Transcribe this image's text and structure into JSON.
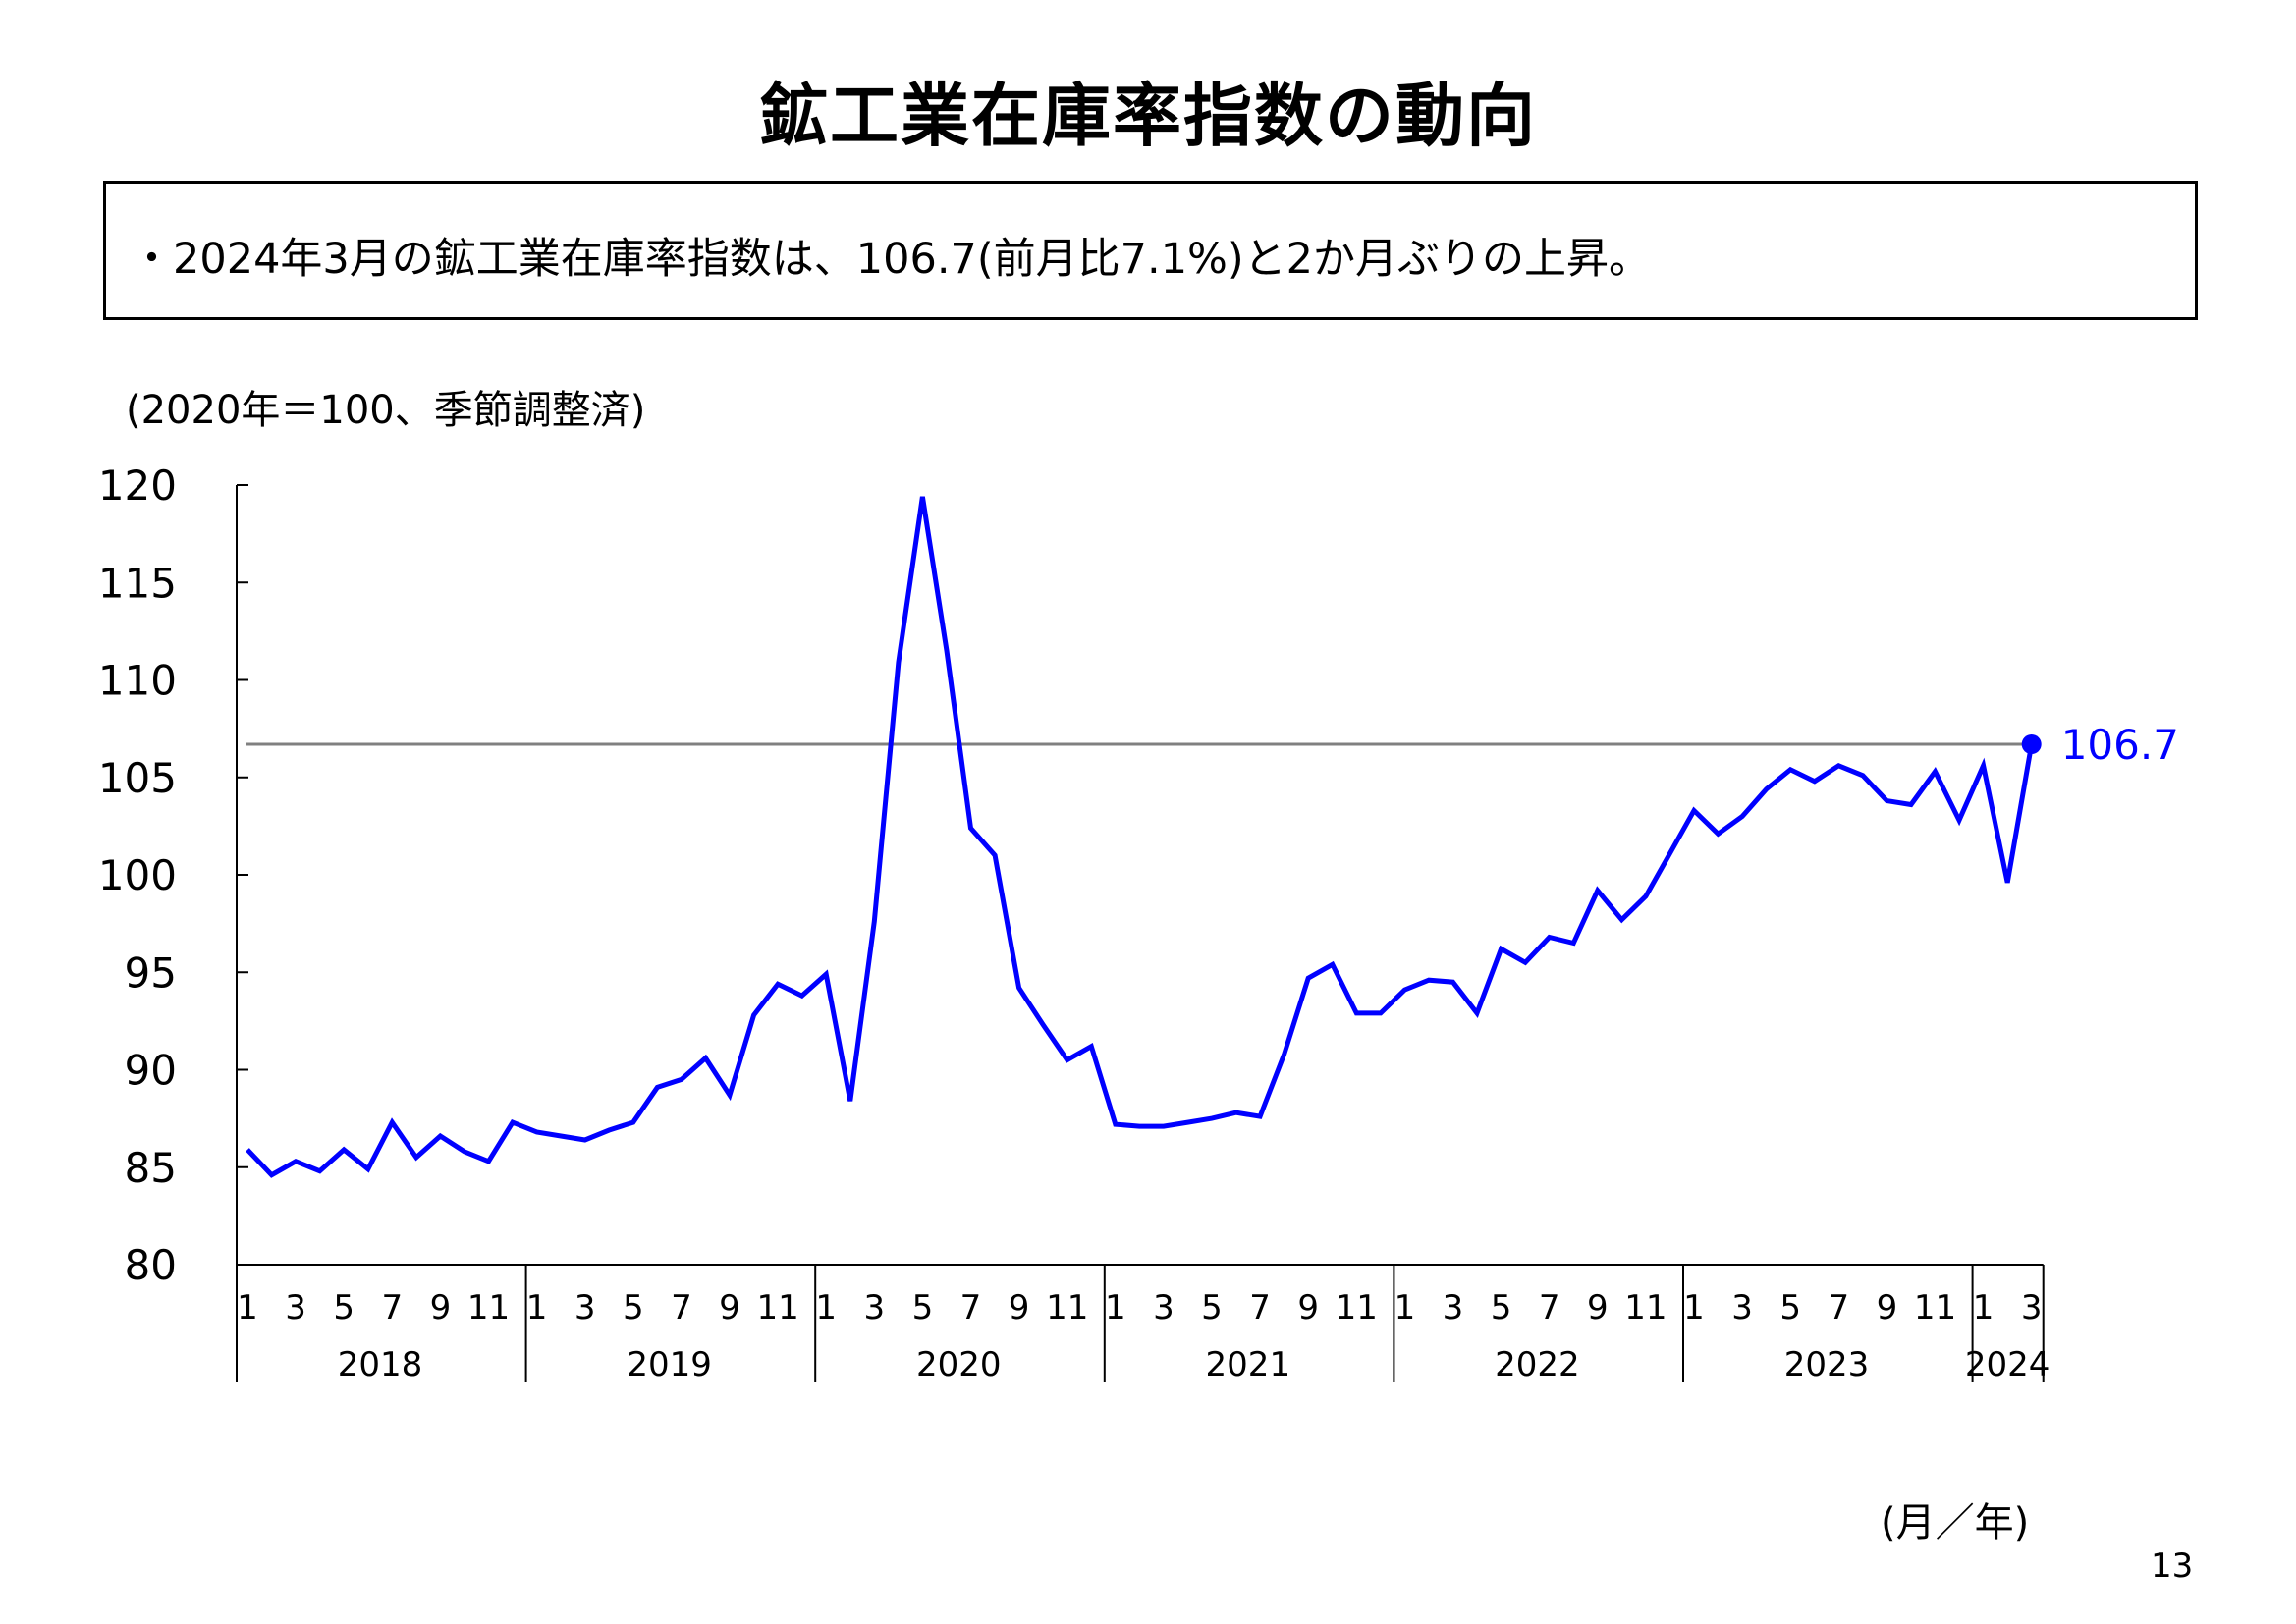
{
  "title": "鉱工業在庫率指数の動向",
  "summary": "・2024年3月の鉱工業在庫率指数は、106.7(前月比7.1%)と2か月ぶりの上昇。",
  "unit_note": "(2020年＝100、季節調整済)",
  "x_unit_note": "(月／年)",
  "page_number": "13",
  "colors": {
    "series": "#0000FF",
    "reference_line": "#808080",
    "axis": "#000000"
  },
  "chart_data": {
    "type": "line",
    "ylim": [
      80,
      120
    ],
    "yticks": [
      80,
      85,
      90,
      95,
      100,
      105,
      110,
      115,
      120
    ],
    "grid": false,
    "month_tick_labels": [
      "1",
      "3",
      "5",
      "7",
      "9",
      "11"
    ],
    "years": [
      {
        "label": "2018",
        "months": 12
      },
      {
        "label": "2019",
        "months": 12
      },
      {
        "label": "2020",
        "months": 12
      },
      {
        "label": "2021",
        "months": 12
      },
      {
        "label": "2022",
        "months": 12
      },
      {
        "label": "2023",
        "months": 12
      },
      {
        "label": "2024",
        "months": 3
      }
    ],
    "series": [
      {
        "values": [
          85.9,
          84.6,
          85.3,
          84.8,
          85.9,
          84.9,
          87.3,
          85.5,
          86.6,
          85.8,
          85.3,
          87.3,
          86.8,
          86.6,
          86.4,
          86.9,
          87.3,
          89.1,
          89.5,
          90.6,
          88.7,
          92.8,
          94.4,
          93.8,
          94.9,
          88.4,
          97.6,
          110.9,
          119.4,
          111.5,
          102.4,
          101.0,
          94.2,
          92.3,
          90.5,
          91.2,
          87.2,
          87.1,
          87.1,
          87.3,
          87.5,
          87.8,
          87.6,
          90.8,
          94.7,
          95.4,
          92.9,
          92.9,
          94.1,
          94.6,
          94.5,
          92.9,
          96.2,
          95.5,
          96.8,
          96.5,
          99.2,
          97.7,
          98.9,
          101.1,
          103.3,
          102.1,
          103.0,
          104.4,
          105.4,
          104.8,
          105.6,
          105.1,
          103.8,
          103.6,
          105.3,
          102.8,
          105.6,
          99.6,
          106.7
        ]
      }
    ],
    "reference_line": 106.7,
    "last_point_label": "106.7"
  }
}
